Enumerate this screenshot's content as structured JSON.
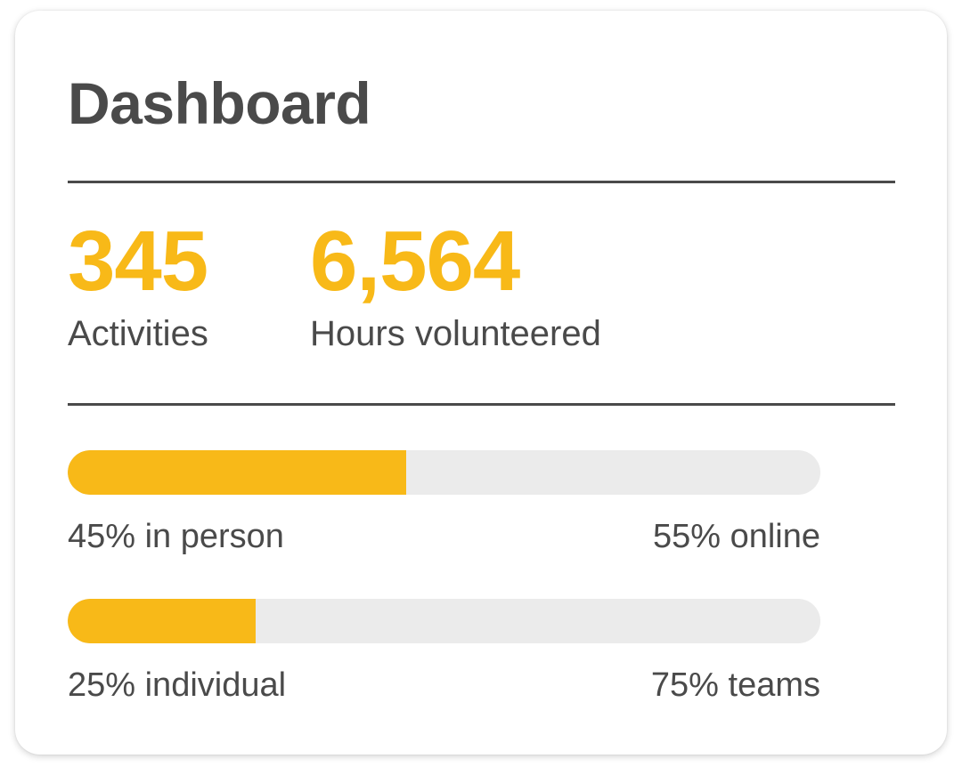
{
  "dashboard": {
    "title": "Dashboard",
    "colors": {
      "accent": "#f8b918",
      "text": "#4a4a4a",
      "track": "#ebebeb"
    },
    "stats": [
      {
        "value": "345",
        "label": "Activities"
      },
      {
        "value": "6,564",
        "label": "Hours volunteered"
      }
    ],
    "bars": [
      {
        "fill_percent": 45,
        "left_label": "45% in person",
        "right_label": "55% online"
      },
      {
        "fill_percent": 25,
        "left_label": "25% individual",
        "right_label": "75% teams"
      }
    ]
  }
}
